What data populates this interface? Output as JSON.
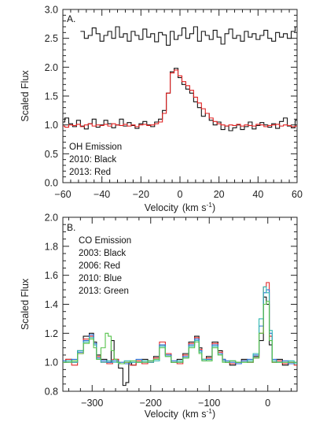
{
  "chart_data": [
    {
      "type": "line",
      "panel_label": "A.",
      "xlabel": "Velocity",
      "xlabel_unit_paren_open": "(km s",
      "xlabel_unit_exp": "-1",
      "xlabel_unit_paren_close": ")",
      "ylabel": "Scaled Flux",
      "xlim": [
        -60,
        60
      ],
      "ylim": [
        0.0,
        3.0
      ],
      "x_ticks": [
        -60,
        -40,
        -20,
        0,
        20,
        40,
        60
      ],
      "x_tick_labels": [
        "−60",
        "−40",
        "−20",
        "0",
        "20",
        "40",
        "60"
      ],
      "y_ticks": [
        0.0,
        0.5,
        1.0,
        1.5,
        2.0,
        2.5,
        3.0
      ],
      "y_tick_labels": [
        "0.0",
        "0.5",
        "1.0",
        "1.5",
        "2.0",
        "2.5",
        "3.0"
      ],
      "annotations": [
        "OH Emission",
        "2010: Black",
        "2013: Red"
      ],
      "series": [
        {
          "color": "#111111",
          "x": [
            -60,
            -58,
            -56,
            -54,
            -52,
            -50,
            -48,
            -46,
            -44,
            -42,
            -40,
            -38,
            -36,
            -34,
            -32,
            -30,
            -28,
            -26,
            -24,
            -22,
            -20,
            -18,
            -16,
            -14,
            -12,
            -10,
            -8,
            -6,
            -4,
            -2,
            0,
            2,
            4,
            6,
            8,
            10,
            12,
            14,
            16,
            18,
            20,
            22,
            24,
            26,
            28,
            30,
            32,
            34,
            36,
            38,
            40,
            42,
            44,
            46,
            48,
            50,
            52,
            54,
            56,
            58,
            60
          ],
          "y": [
            1.05,
            1.12,
            1.02,
            0.97,
            1.08,
            0.98,
            0.93,
            1.02,
            1.1,
            0.96,
            1.0,
            1.08,
            1.02,
            0.95,
            1.0,
            1.1,
            0.98,
            1.04,
            0.99,
            0.94,
            1.02,
            1.06,
            1.0,
            0.97,
            1.05,
            1.1,
            1.25,
            1.55,
            1.92,
            1.98,
            1.82,
            1.7,
            1.62,
            1.55,
            1.4,
            1.3,
            1.15,
            1.2,
            1.08,
            1.0,
            1.05,
            0.92,
            0.98,
            0.9,
            0.95,
            1.0,
            0.92,
            0.97,
            1.05,
            0.93,
            0.99,
            1.04,
            1.0,
            0.96,
            1.02,
            0.94,
            1.06,
            1.12,
            0.98,
            0.95,
            1.08
          ]
        },
        {
          "color": "#e02020",
          "x": [
            -60,
            -58,
            -56,
            -54,
            -52,
            -50,
            -48,
            -46,
            -44,
            -42,
            -40,
            -38,
            -36,
            -34,
            -32,
            -30,
            -28,
            -26,
            -24,
            -22,
            -20,
            -18,
            -16,
            -14,
            -12,
            -10,
            -8,
            -6,
            -4,
            -2,
            0,
            2,
            4,
            6,
            8,
            10,
            12,
            14,
            16,
            18,
            20,
            22,
            24,
            26,
            28,
            30,
            32,
            34,
            36,
            38,
            40,
            42,
            44,
            46,
            48,
            50,
            52,
            54,
            56,
            58,
            60
          ],
          "y": [
            0.98,
            0.96,
            1.0,
            0.99,
            1.01,
            0.97,
            1.0,
            1.02,
            0.98,
            1.0,
            0.99,
            1.01,
            0.98,
            1.02,
            1.0,
            0.99,
            1.01,
            0.98,
            1.0,
            0.97,
            1.0,
            1.01,
            0.99,
            1.0,
            1.02,
            1.05,
            1.2,
            1.55,
            1.9,
            1.95,
            1.85,
            1.75,
            1.68,
            1.6,
            1.48,
            1.38,
            1.28,
            1.2,
            1.12,
            1.06,
            1.02,
            1.0,
            0.98,
            1.0,
            0.99,
            1.01,
            0.98,
            1.0,
            0.99,
            0.98,
            1.01,
            1.0,
            0.97,
            0.99,
            1.0,
            1.01,
            0.98,
            1.0,
            0.99,
            0.97,
            0.98
          ]
        },
        {
          "color": "#111111",
          "x": [
            -50,
            -48,
            -46,
            -44,
            -42,
            -40,
            -38,
            -36,
            -34,
            -32,
            -30,
            -28,
            -26,
            -24,
            -22,
            -20,
            -18,
            -16,
            -14,
            -12,
            -10,
            -8,
            -6,
            -4,
            -2,
            0,
            2,
            4,
            6,
            8,
            10,
            12,
            14,
            16,
            18,
            20,
            22,
            24,
            26,
            28,
            30,
            32,
            34,
            36,
            38,
            40,
            42,
            44,
            46,
            48,
            50,
            52,
            54,
            56,
            58,
            60
          ],
          "y": [
            2.62,
            2.5,
            2.55,
            2.68,
            2.58,
            2.45,
            2.55,
            2.62,
            2.5,
            2.7,
            2.52,
            2.58,
            2.45,
            2.62,
            2.55,
            2.48,
            2.66,
            2.52,
            2.58,
            2.44,
            2.6,
            2.56,
            2.38,
            2.62,
            2.48,
            2.55,
            2.68,
            2.5,
            2.58,
            2.7,
            2.45,
            2.62,
            2.55,
            2.48,
            2.64,
            2.52,
            2.4,
            2.58,
            2.66,
            2.5,
            2.55,
            2.45,
            2.62,
            2.52,
            2.58,
            2.48,
            2.55,
            2.64,
            2.5,
            2.45,
            2.6,
            2.52,
            2.58,
            2.5,
            2.62,
            2.7
          ]
        }
      ]
    },
    {
      "type": "line",
      "panel_label": "B.",
      "xlabel": "Velocity",
      "xlabel_unit_paren_open": "(km s",
      "xlabel_unit_exp": "-1",
      "xlabel_unit_paren_close": ")",
      "ylabel": "Scaled Flux",
      "xlim": [
        -350,
        50
      ],
      "ylim": [
        0.8,
        2.0
      ],
      "x_ticks": [
        -300,
        -200,
        -100,
        0
      ],
      "x_tick_labels": [
        "−300",
        "−200",
        "−100",
        "0"
      ],
      "y_ticks": [
        0.8,
        1.0,
        1.2,
        1.4,
        1.6,
        1.8,
        2.0
      ],
      "y_tick_labels": [
        "0.8",
        "1.0",
        "1.2",
        "1.4",
        "1.6",
        "1.8",
        "2.0"
      ],
      "annotations": [
        "CO Emission",
        "2003: Black",
        "2006: Red",
        "2010: Blue",
        "2013: Green"
      ],
      "series": [
        {
          "color": "#111111",
          "x": [
            -350,
            -340,
            -330,
            -320,
            -310,
            -300,
            -295,
            -290,
            -280,
            -270,
            -265,
            -260,
            -250,
            -245,
            -240,
            -235,
            -230,
            -220,
            -210,
            -200,
            -190,
            -180,
            -170,
            -160,
            -150,
            -140,
            -130,
            -120,
            -115,
            -110,
            -100,
            -90,
            -80,
            -75,
            -70,
            -60,
            -50,
            -40,
            -30,
            -20,
            -10,
            -5,
            0,
            5,
            10,
            20,
            30,
            40,
            50
          ],
          "y": [
            1.0,
            1.02,
            1.0,
            1.08,
            1.18,
            1.2,
            1.14,
            1.05,
            1.02,
            1.0,
            1.15,
            1.02,
            0.96,
            0.84,
            0.86,
            1.0,
            0.98,
            1.0,
            1.02,
            1.0,
            1.04,
            1.12,
            1.05,
            1.0,
            1.02,
            1.06,
            1.14,
            1.18,
            1.1,
            1.02,
            1.04,
            1.14,
            1.08,
            1.02,
            1.0,
            0.98,
            1.0,
            1.02,
            1.0,
            1.04,
            1.15,
            1.45,
            1.4,
            1.12,
            1.0,
            1.02,
            0.98,
            1.0,
            0.99
          ]
        },
        {
          "color": "#e02828",
          "x": [
            -350,
            -340,
            -330,
            -320,
            -310,
            -300,
            -295,
            -290,
            -280,
            -270,
            -260,
            -250,
            -240,
            -230,
            -220,
            -210,
            -200,
            -190,
            -180,
            -170,
            -160,
            -150,
            -140,
            -130,
            -120,
            -115,
            -110,
            -100,
            -90,
            -80,
            -75,
            -70,
            -60,
            -50,
            -40,
            -30,
            -20,
            -10,
            -5,
            0,
            5,
            10,
            20,
            30,
            40,
            50
          ],
          "y": [
            1.0,
            1.02,
            0.98,
            1.06,
            1.16,
            1.18,
            1.12,
            1.04,
            1.0,
            0.99,
            1.02,
            0.99,
            1.0,
            0.98,
            1.01,
            0.99,
            1.0,
            1.03,
            1.14,
            1.06,
            1.0,
            0.99,
            1.05,
            1.13,
            1.17,
            1.09,
            1.02,
            1.03,
            1.13,
            1.07,
            1.01,
            1.0,
            0.99,
            1.0,
            1.01,
            1.0,
            1.03,
            1.2,
            1.52,
            1.55,
            1.18,
            1.0,
            1.01,
            0.99,
            1.0,
            0.98
          ]
        },
        {
          "color": "#2a6fd6",
          "x": [
            -350,
            -340,
            -330,
            -320,
            -310,
            -300,
            -295,
            -290,
            -280,
            -270,
            -260,
            -250,
            -240,
            -230,
            -220,
            -210,
            -200,
            -190,
            -180,
            -170,
            -160,
            -150,
            -140,
            -130,
            -120,
            -115,
            -110,
            -100,
            -90,
            -80,
            -75,
            -70,
            -60,
            -50,
            -40,
            -30,
            -20,
            -10,
            -5,
            0,
            5,
            10,
            20,
            30,
            40,
            50
          ],
          "y": [
            1.01,
            1.0,
            1.02,
            1.07,
            1.15,
            1.19,
            1.13,
            1.03,
            1.01,
            1.0,
            1.01,
            1.0,
            0.99,
            1.0,
            1.02,
            1.0,
            1.01,
            1.02,
            1.12,
            1.05,
            1.01,
            1.0,
            1.04,
            1.12,
            1.16,
            1.08,
            1.01,
            1.02,
            1.12,
            1.06,
            1.02,
            1.01,
            1.0,
            0.99,
            1.01,
            1.02,
            1.05,
            1.25,
            1.48,
            1.5,
            1.2,
            1.02,
            1.0,
            1.01,
            0.99,
            1.0
          ]
        },
        {
          "color": "#2fb8b0",
          "x": [
            -350,
            -340,
            -330,
            -320,
            -310,
            -300,
            -295,
            -290,
            -280,
            -270,
            -260,
            -250,
            -240,
            -230,
            -220,
            -210,
            -200,
            -190,
            -180,
            -170,
            -160,
            -150,
            -140,
            -130,
            -120,
            -115,
            -110,
            -100,
            -90,
            -80,
            -75,
            -70,
            -60,
            -50,
            -40,
            -30,
            -20,
            -10,
            -5,
            0,
            5,
            10,
            20,
            30,
            40,
            50
          ],
          "y": [
            1.0,
            1.01,
            1.0,
            1.08,
            1.14,
            1.17,
            1.12,
            1.02,
            1.0,
            1.01,
            1.0,
            0.99,
            1.01,
            1.0,
            1.0,
            1.01,
            1.0,
            1.01,
            1.11,
            1.04,
            1.0,
            1.01,
            1.03,
            1.11,
            1.15,
            1.07,
            1.02,
            1.01,
            1.11,
            1.05,
            1.01,
            1.0,
            1.01,
            1.0,
            1.0,
            1.01,
            1.06,
            1.3,
            1.52,
            1.48,
            1.22,
            1.01,
            1.0,
            1.0,
            1.01,
            0.99
          ]
        },
        {
          "color": "#55c24a",
          "x": [
            -350,
            -340,
            -330,
            -320,
            -310,
            -300,
            -295,
            -290,
            -280,
            -275,
            -270,
            -265,
            -260,
            -255,
            -250,
            -240,
            -230,
            -220,
            -210,
            -200,
            -190,
            -180,
            -170,
            -160,
            -150,
            -140,
            -130,
            -120,
            -115,
            -110,
            -100,
            -90,
            -80,
            -75,
            -70,
            -60,
            -50,
            -40,
            -30,
            -20,
            -10,
            -5,
            0,
            5,
            10,
            20,
            30,
            40,
            50
          ],
          "y": [
            1.0,
            1.0,
            1.01,
            1.06,
            1.13,
            1.16,
            1.1,
            1.02,
            1.1,
            1.2,
            1.18,
            1.08,
            1.02,
            1.0,
            0.99,
            1.0,
            1.01,
            1.0,
            1.0,
            1.01,
            1.02,
            1.1,
            1.04,
            1.0,
            1.0,
            1.03,
            1.1,
            1.14,
            1.06,
            1.01,
            1.01,
            1.1,
            1.05,
            1.0,
            1.0,
            1.01,
            1.0,
            1.0,
            1.0,
            1.03,
            1.2,
            1.4,
            1.42,
            1.15,
            1.0,
            1.0,
            1.0,
            1.0,
            1.0
          ]
        }
      ]
    }
  ]
}
